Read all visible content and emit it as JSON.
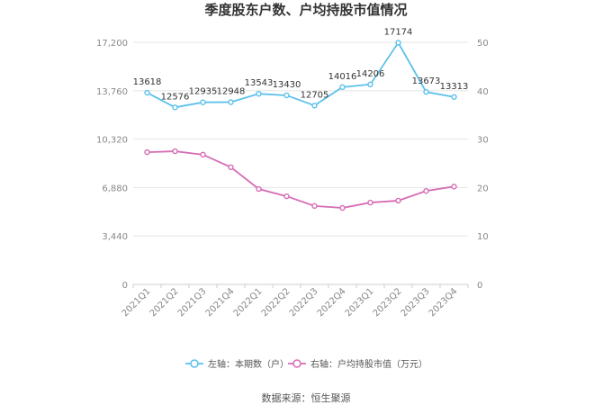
{
  "chart_data": {
    "type": "line",
    "title": "季度股东户数、户均持股市值情况",
    "categories": [
      "2021Q1",
      "2021Q2",
      "2021Q3",
      "2021Q4",
      "2022Q1",
      "2022Q2",
      "2022Q3",
      "2022Q4",
      "2023Q1",
      "2023Q2",
      "2023Q3",
      "2023Q4"
    ],
    "left_axis": {
      "ticks": [
        "0",
        "3,440",
        "6,880",
        "10,320",
        "13,760",
        "17,200"
      ],
      "ylim": [
        0,
        17200
      ]
    },
    "right_axis": {
      "ticks": [
        "0",
        "10",
        "20",
        "30",
        "40",
        "50"
      ],
      "ylim": [
        0,
        50
      ]
    },
    "series": [
      {
        "name": "左轴：本期数（户）",
        "axis": "left",
        "color": "#5bc0eb",
        "values": [
          13618,
          12576,
          12935,
          12948,
          13543,
          13430,
          12705,
          14016,
          14206,
          17174,
          13673,
          13313
        ],
        "labels": [
          "13618",
          "12576",
          "12935",
          "12948",
          "13543",
          "13430",
          "12705",
          "14016",
          "14206",
          "17174",
          "13673",
          "13313"
        ]
      },
      {
        "name": "右轴：户均持股市值（万元）",
        "axis": "right",
        "color": "#d66db5",
        "values": [
          27.3,
          27.5,
          26.8,
          24.2,
          19.7,
          18.2,
          16.2,
          15.8,
          16.9,
          17.3,
          19.3,
          20.2
        ]
      }
    ],
    "grid": true,
    "legend": "bottom"
  },
  "footer": {
    "source": "数据来源：恒生聚源"
  }
}
